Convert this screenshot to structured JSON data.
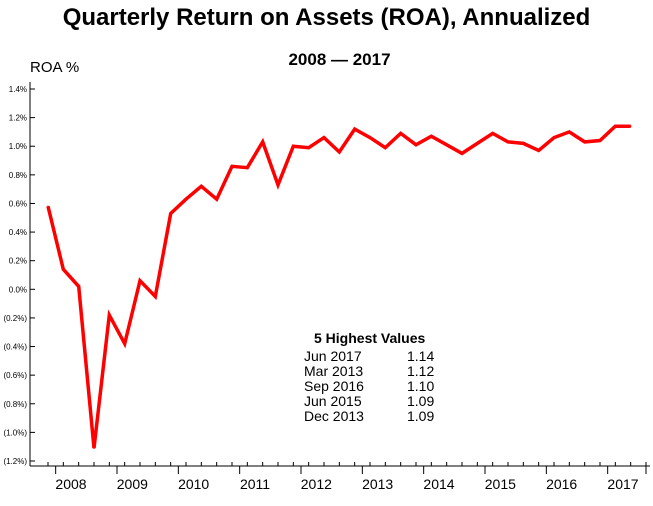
{
  "chart_data": {
    "type": "line",
    "title": "Quarterly Return on Assets (ROA), Annualized",
    "subtitle": "2008 — 2017",
    "ylabel": "ROA %",
    "xlabel": "",
    "ylim": [
      -1.2,
      1.4
    ],
    "y_ticks": [
      "1.4%",
      "1.2%",
      "1.0%",
      "0.8%",
      "0.6%",
      "0.4%",
      "0.2%",
      "0.0%",
      "(0.2%)",
      "(0.4%)",
      "(0.6%)",
      "(0.8%)",
      "(1.0%)",
      "(1.2%)"
    ],
    "y_tick_values": [
      1.4,
      1.2,
      1.0,
      0.8,
      0.6,
      0.4,
      0.2,
      0.0,
      -0.2,
      -0.4,
      -0.6,
      -0.8,
      -1.0,
      -1.2
    ],
    "x_ticks": [
      "2008",
      "2009",
      "2010",
      "2011",
      "2012",
      "2013",
      "2014",
      "2015",
      "2016",
      "2017"
    ],
    "x_tick_values": [
      2008,
      2009,
      2010,
      2011,
      2012,
      2013,
      2014,
      2015,
      2016,
      2017
    ],
    "grid": false,
    "series": [
      {
        "color": "#ff0000",
        "x": [
          2007.75,
          2008.0,
          2008.25,
          2008.5,
          2008.75,
          2009.0,
          2009.25,
          2009.5,
          2009.75,
          2010.0,
          2010.25,
          2010.5,
          2010.75,
          2011.0,
          2011.25,
          2011.5,
          2011.75,
          2012.0,
          2012.25,
          2012.5,
          2012.75,
          2013.0,
          2013.25,
          2013.5,
          2013.75,
          2014.0,
          2014.25,
          2014.5,
          2014.75,
          2015.0,
          2015.25,
          2015.5,
          2015.75,
          2016.0,
          2016.25,
          2016.5,
          2016.75,
          2017.0,
          2017.25
        ],
        "y": [
          0.58,
          0.14,
          0.02,
          -1.11,
          -0.18,
          -0.38,
          0.06,
          -0.05,
          0.53,
          0.63,
          0.72,
          0.63,
          0.86,
          0.85,
          1.03,
          0.73,
          1.0,
          0.99,
          1.06,
          0.96,
          1.12,
          1.06,
          0.99,
          1.09,
          1.01,
          1.07,
          1.01,
          0.95,
          1.02,
          1.09,
          1.03,
          1.02,
          0.97,
          1.06,
          1.1,
          1.03,
          1.04,
          1.14,
          1.14
        ]
      }
    ],
    "annotation": {
      "title": "5 Highest Values",
      "rows": [
        {
          "date": "Jun 2017",
          "value": "1.14"
        },
        {
          "date": "Mar 2013",
          "value": "1.12"
        },
        {
          "date": "Sep 2016",
          "value": "1.10"
        },
        {
          "date": "Jun 2015",
          "value": "1.09"
        },
        {
          "date": "Dec 2013",
          "value": "1.09"
        }
      ]
    }
  }
}
